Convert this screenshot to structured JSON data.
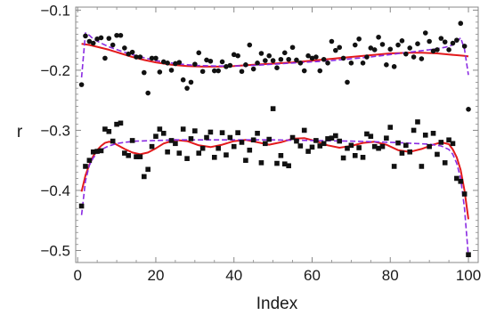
{
  "chart_data": {
    "type": "scatter",
    "title": "",
    "xlabel": "Index",
    "ylabel": "r",
    "xlim": [
      -0.5,
      102.5
    ],
    "ylim": [
      -0.52,
      -0.095
    ],
    "x_ticks": [
      0,
      20,
      40,
      60,
      80,
      100
    ],
    "y_ticks": [
      -0.5,
      -0.4,
      -0.3,
      -0.2,
      -0.1
    ],
    "x_tick_labels": [
      "0",
      "20",
      "40",
      "60",
      "80",
      "100"
    ],
    "y_tick_labels": [
      "−0.5",
      "−0.4",
      "−0.3",
      "−0.2",
      "−0.1"
    ],
    "grid": false,
    "colors": {
      "points": "#111111",
      "fit_solid": "#e31a1c",
      "fit_dashed": "#8a2be2",
      "frame": "#888888"
    },
    "series": [
      {
        "marker": "circle",
        "x": [
          1,
          2,
          3,
          4,
          5,
          6,
          7,
          8,
          9,
          10,
          11,
          12,
          13,
          14,
          15,
          16,
          17,
          18,
          19,
          20,
          21,
          22,
          23,
          24,
          25,
          26,
          27,
          28,
          29,
          30,
          31,
          32,
          33,
          34,
          35,
          36,
          37,
          38,
          39,
          40,
          41,
          42,
          43,
          44,
          45,
          46,
          47,
          48,
          49,
          50,
          51,
          52,
          53,
          54,
          55,
          56,
          57,
          58,
          59,
          60,
          61,
          62,
          63,
          64,
          65,
          66,
          67,
          68,
          69,
          70,
          71,
          72,
          73,
          74,
          75,
          76,
          77,
          78,
          79,
          80,
          81,
          82,
          83,
          84,
          85,
          86,
          87,
          88,
          89,
          90,
          91,
          92,
          93,
          94,
          95,
          96,
          97,
          98,
          99,
          100
        ],
        "y": [
          -0.224,
          -0.143,
          -0.152,
          -0.155,
          -0.148,
          -0.146,
          -0.18,
          -0.147,
          -0.158,
          -0.142,
          -0.142,
          -0.163,
          -0.173,
          -0.17,
          -0.178,
          -0.178,
          -0.204,
          -0.238,
          -0.18,
          -0.18,
          -0.203,
          -0.186,
          -0.188,
          -0.2,
          -0.189,
          -0.187,
          -0.216,
          -0.23,
          -0.22,
          -0.19,
          -0.171,
          -0.202,
          -0.183,
          -0.185,
          -0.201,
          -0.201,
          -0.186,
          -0.194,
          -0.192,
          -0.174,
          -0.176,
          -0.202,
          -0.191,
          -0.158,
          -0.198,
          -0.188,
          -0.172,
          -0.184,
          -0.176,
          -0.184,
          -0.196,
          -0.182,
          -0.171,
          -0.182,
          -0.162,
          -0.183,
          -0.188,
          -0.201,
          -0.176,
          -0.18,
          -0.178,
          -0.201,
          -0.182,
          -0.188,
          -0.152,
          -0.167,
          -0.162,
          -0.18,
          -0.22,
          -0.188,
          -0.158,
          -0.148,
          -0.188,
          -0.178,
          -0.163,
          -0.166,
          -0.145,
          -0.157,
          -0.191,
          -0.165,
          -0.194,
          -0.158,
          -0.151,
          -0.173,
          -0.163,
          -0.178,
          -0.156,
          -0.181,
          -0.138,
          -0.152,
          -0.168,
          -0.166,
          -0.147,
          -0.153,
          -0.166,
          -0.155,
          -0.15,
          -0.122,
          -0.16,
          -0.265
        ]
      },
      {
        "marker": "square",
        "x": [
          1,
          2,
          3,
          4,
          5,
          6,
          7,
          8,
          9,
          10,
          11,
          12,
          13,
          14,
          15,
          16,
          17,
          18,
          19,
          20,
          21,
          22,
          23,
          24,
          25,
          26,
          27,
          28,
          29,
          30,
          31,
          32,
          33,
          34,
          35,
          36,
          37,
          38,
          39,
          40,
          41,
          42,
          43,
          44,
          45,
          46,
          47,
          48,
          49,
          50,
          51,
          52,
          53,
          54,
          55,
          56,
          57,
          58,
          59,
          60,
          61,
          62,
          63,
          64,
          65,
          66,
          67,
          68,
          69,
          70,
          71,
          72,
          73,
          74,
          75,
          76,
          77,
          78,
          79,
          80,
          81,
          82,
          83,
          84,
          85,
          86,
          87,
          88,
          89,
          90,
          91,
          92,
          93,
          94,
          95,
          96,
          97,
          98,
          99,
          100
        ],
        "y": [
          -0.426,
          -0.36,
          -0.35,
          -0.336,
          -0.335,
          -0.334,
          -0.298,
          -0.302,
          -0.318,
          -0.29,
          -0.288,
          -0.338,
          -0.342,
          -0.317,
          -0.344,
          -0.344,
          -0.377,
          -0.365,
          -0.327,
          -0.31,
          -0.298,
          -0.305,
          -0.336,
          -0.317,
          -0.322,
          -0.338,
          -0.298,
          -0.347,
          -0.314,
          -0.301,
          -0.338,
          -0.33,
          -0.312,
          -0.303,
          -0.345,
          -0.33,
          -0.304,
          -0.341,
          -0.312,
          -0.327,
          -0.304,
          -0.32,
          -0.35,
          -0.333,
          -0.316,
          -0.305,
          -0.354,
          -0.322,
          -0.315,
          -0.264,
          -0.355,
          -0.342,
          -0.356,
          -0.359,
          -0.312,
          -0.318,
          -0.326,
          -0.3,
          -0.335,
          -0.328,
          -0.317,
          -0.326,
          -0.322,
          -0.314,
          -0.313,
          -0.309,
          -0.318,
          -0.346,
          -0.33,
          -0.325,
          -0.342,
          -0.329,
          -0.345,
          -0.306,
          -0.31,
          -0.327,
          -0.33,
          -0.327,
          -0.313,
          -0.295,
          -0.36,
          -0.321,
          -0.338,
          -0.325,
          -0.336,
          -0.3,
          -0.286,
          -0.36,
          -0.308,
          -0.327,
          -0.305,
          -0.34,
          -0.32,
          -0.354,
          -0.316,
          -0.322,
          -0.38,
          -0.385,
          -0.406,
          -0.507
        ]
      },
      {
        "style": "solid",
        "x": [
          1,
          3,
          5,
          8,
          11,
          14,
          17,
          20,
          24,
          28,
          32,
          36,
          40,
          45,
          50,
          55,
          60,
          65,
          70,
          75,
          80,
          85,
          88,
          92,
          95,
          97,
          99,
          100
        ],
        "y": [
          -0.156,
          -0.158,
          -0.161,
          -0.166,
          -0.172,
          -0.178,
          -0.183,
          -0.187,
          -0.191,
          -0.193,
          -0.194,
          -0.194,
          -0.193,
          -0.191,
          -0.189,
          -0.187,
          -0.184,
          -0.181,
          -0.178,
          -0.175,
          -0.172,
          -0.171,
          -0.171,
          -0.172,
          -0.174,
          -0.175,
          -0.176,
          -0.177
        ]
      },
      {
        "style": "dashed",
        "x": [
          1,
          2,
          3,
          4,
          6,
          8,
          11,
          15,
          20,
          25,
          30,
          35,
          40,
          45,
          50,
          55,
          60,
          65,
          70,
          75,
          80,
          85,
          90,
          94,
          96,
          97,
          98,
          99,
          100
        ],
        "y": [
          -0.212,
          -0.138,
          -0.142,
          -0.148,
          -0.155,
          -0.161,
          -0.168,
          -0.176,
          -0.184,
          -0.189,
          -0.192,
          -0.193,
          -0.193,
          -0.192,
          -0.19,
          -0.188,
          -0.186,
          -0.184,
          -0.181,
          -0.178,
          -0.174,
          -0.17,
          -0.166,
          -0.162,
          -0.158,
          -0.153,
          -0.146,
          -0.165,
          -0.208
        ]
      },
      {
        "style": "solid",
        "x": [
          1,
          2,
          3,
          4,
          5,
          6,
          7,
          8,
          9,
          10,
          12,
          14,
          16,
          18,
          20,
          22,
          25,
          28,
          31,
          34,
          37,
          40,
          43,
          46,
          49,
          52,
          55,
          58,
          61,
          64,
          67,
          70,
          73,
          76,
          79,
          82,
          85,
          88,
          91,
          93,
          95,
          96,
          97,
          98,
          99,
          100
        ],
        "y": [
          -0.402,
          -0.375,
          -0.357,
          -0.343,
          -0.333,
          -0.326,
          -0.321,
          -0.319,
          -0.32,
          -0.324,
          -0.331,
          -0.337,
          -0.34,
          -0.337,
          -0.33,
          -0.322,
          -0.316,
          -0.318,
          -0.325,
          -0.328,
          -0.324,
          -0.318,
          -0.316,
          -0.32,
          -0.324,
          -0.32,
          -0.314,
          -0.313,
          -0.318,
          -0.325,
          -0.329,
          -0.326,
          -0.321,
          -0.319,
          -0.324,
          -0.333,
          -0.336,
          -0.331,
          -0.324,
          -0.32,
          -0.323,
          -0.332,
          -0.345,
          -0.366,
          -0.4,
          -0.448
        ]
      },
      {
        "style": "dashed",
        "x": [
          1,
          2,
          3,
          4,
          5,
          6,
          7,
          8,
          10,
          12,
          15,
          20,
          25,
          30,
          40,
          50,
          60,
          70,
          80,
          90,
          93,
          95,
          96,
          97,
          98,
          99,
          100
        ],
        "y": [
          -0.441,
          -0.384,
          -0.358,
          -0.346,
          -0.338,
          -0.333,
          -0.329,
          -0.326,
          -0.322,
          -0.32,
          -0.318,
          -0.317,
          -0.316,
          -0.316,
          -0.316,
          -0.316,
          -0.317,
          -0.318,
          -0.32,
          -0.323,
          -0.326,
          -0.332,
          -0.34,
          -0.355,
          -0.38,
          -0.43,
          -0.51
        ]
      }
    ]
  }
}
